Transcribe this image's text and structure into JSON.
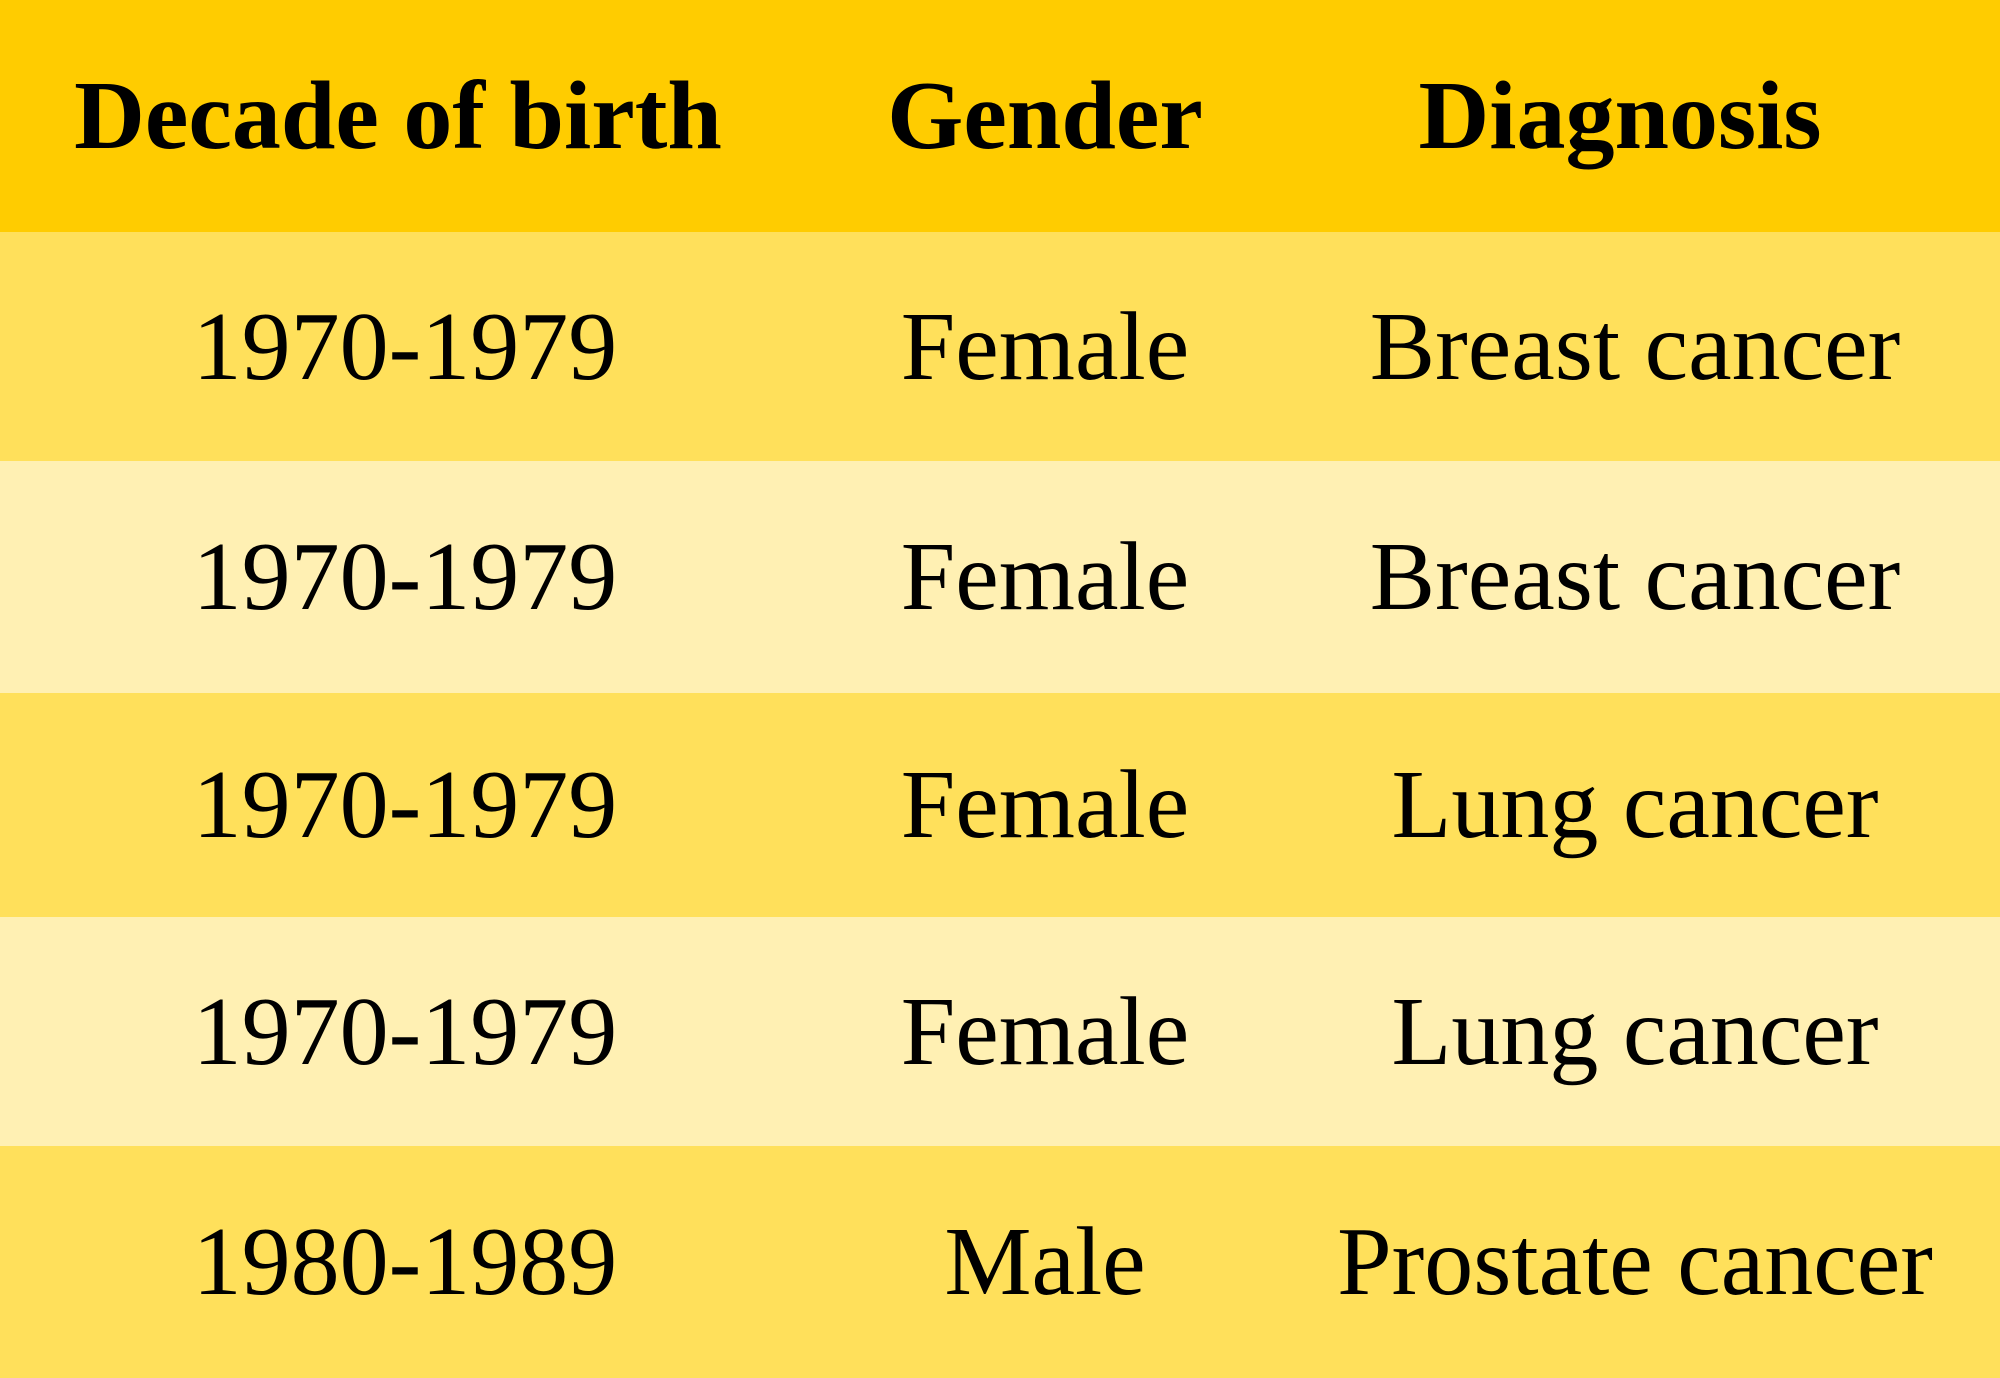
{
  "table": {
    "headers": [
      "Decade of birth",
      "Gender",
      "Diagnosis"
    ],
    "rows": [
      [
        "1970-1979",
        "Female",
        "Breast cancer"
      ],
      [
        "1970-1979",
        "Female",
        "Breast cancer"
      ],
      [
        "1970-1979",
        "Female",
        "Lung cancer"
      ],
      [
        "1970-1979",
        "Female",
        "Lung cancer"
      ],
      [
        "1980-1989",
        "Male",
        "Prostate cancer"
      ]
    ]
  },
  "colors": {
    "header_bg": "#ffcc00",
    "row_dark_bg": "#ffe05b",
    "row_light_bg": "#fff0b3",
    "text": "#000000"
  }
}
